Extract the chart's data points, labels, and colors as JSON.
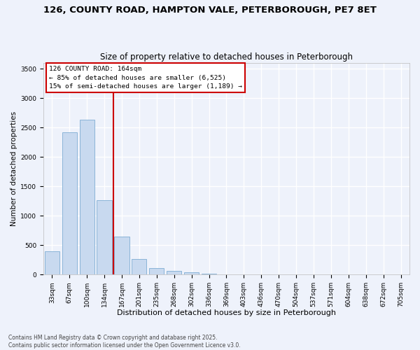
{
  "title": "126, COUNTY ROAD, HAMPTON VALE, PETERBOROUGH, PE7 8ET",
  "subtitle": "Size of property relative to detached houses in Peterborough",
  "xlabel": "Distribution of detached houses by size in Peterborough",
  "ylabel": "Number of detached properties",
  "categories": [
    "33sqm",
    "67sqm",
    "100sqm",
    "134sqm",
    "167sqm",
    "201sqm",
    "235sqm",
    "268sqm",
    "302sqm",
    "336sqm",
    "369sqm",
    "403sqm",
    "436sqm",
    "470sqm",
    "504sqm",
    "537sqm",
    "571sqm",
    "604sqm",
    "638sqm",
    "672sqm",
    "705sqm"
  ],
  "values": [
    390,
    2420,
    2630,
    1260,
    650,
    260,
    105,
    60,
    35,
    18,
    8,
    3,
    0,
    0,
    0,
    0,
    0,
    0,
    0,
    0,
    0
  ],
  "bar_color": "#c8d9ef",
  "bar_edge_color": "#8ab4d8",
  "vline_x_index": 3.5,
  "vline_color": "#cc0000",
  "annotation_line1": "126 COUNTY ROAD: 164sqm",
  "annotation_line2": "← 85% of detached houses are smaller (6,525)",
  "annotation_line3": "15% of semi-detached houses are larger (1,189) →",
  "annotation_box_facecolor": "#ffffff",
  "annotation_box_edgecolor": "#cc0000",
  "ylim": [
    0,
    3600
  ],
  "yticks": [
    0,
    500,
    1000,
    1500,
    2000,
    2500,
    3000,
    3500
  ],
  "background_color": "#eef2fb",
  "grid_color": "#ffffff",
  "footer": "Contains HM Land Registry data © Crown copyright and database right 2025.\nContains public sector information licensed under the Open Government Licence v3.0.",
  "title_fontsize": 9.5,
  "subtitle_fontsize": 8.5,
  "xlabel_fontsize": 8,
  "ylabel_fontsize": 7.5,
  "tick_fontsize": 6.5,
  "annotation_fontsize": 6.8,
  "footer_fontsize": 5.5
}
